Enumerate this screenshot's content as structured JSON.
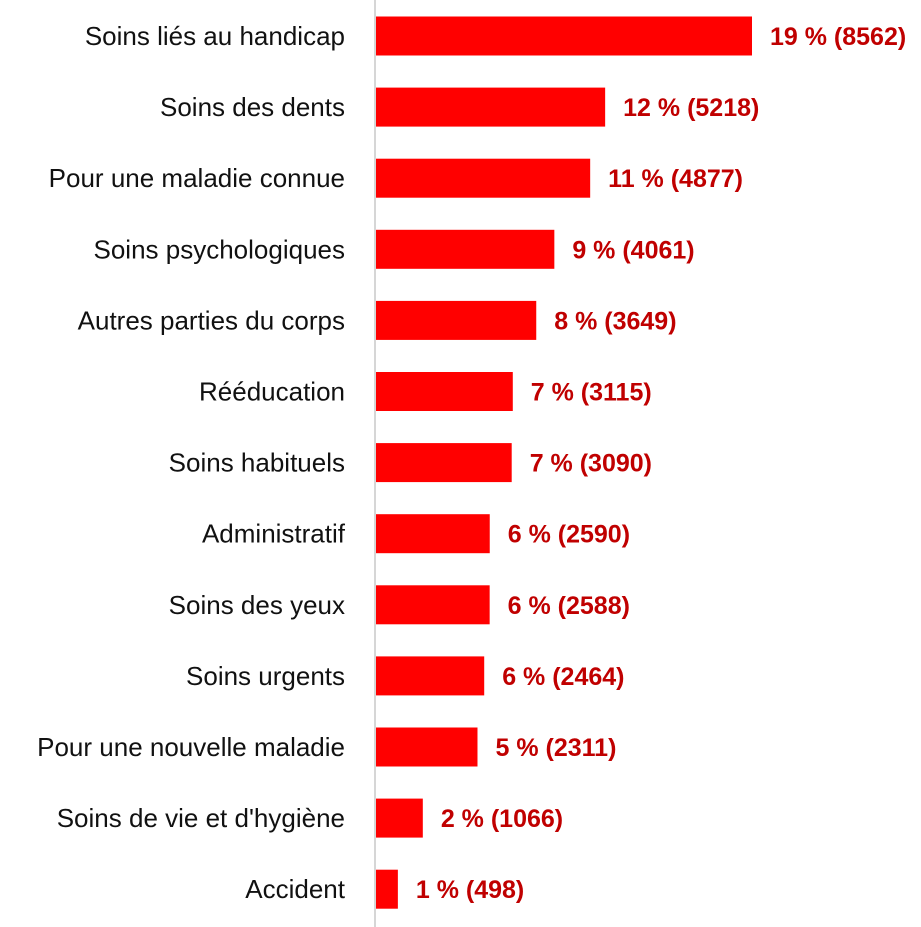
{
  "chart_data": {
    "type": "bar",
    "orientation": "horizontal",
    "categories": [
      "Soins liés au handicap",
      "Soins des dents",
      "Pour une maladie connue",
      "Soins psychologiques",
      "Autres parties du corps",
      "Rééducation",
      "Soins habituels",
      "Administratif",
      "Soins des yeux",
      "Soins urgents",
      "Pour une nouvelle maladie",
      "Soins de vie et d'hygiène",
      "Accident"
    ],
    "values": [
      8562,
      5218,
      4877,
      4061,
      3649,
      3115,
      3090,
      2590,
      2588,
      2464,
      2311,
      1066,
      498
    ],
    "data_labels": [
      "19 % (8562)",
      "12 % (5218)",
      "11 % (4877)",
      "9 % (4061)",
      "8 % (3649)",
      "7 % (3115)",
      "7 % (3090)",
      "6 % (2590)",
      "6 % (2588)",
      "6 % (2464)",
      "5 % (2311)",
      "2 % (1066)",
      "1 % (498)"
    ],
    "title": "",
    "xlabel": "",
    "ylabel": "",
    "grid": false,
    "legend": "none",
    "colors": {
      "bar": "#ff0000",
      "value_label": "#c00000",
      "category_label": "#111111",
      "axis": "#c8c8c8"
    }
  }
}
